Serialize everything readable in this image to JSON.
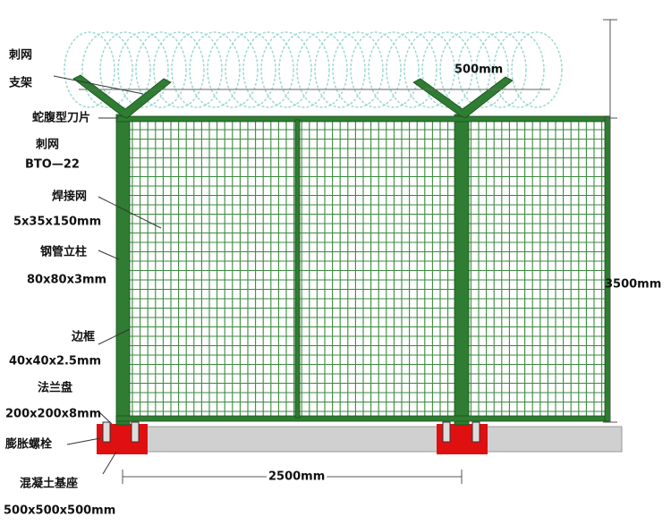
{
  "labels": {
    "barbed_wire": "刺网",
    "bracket": "支架",
    "razor_blade": "蛇腹型刀片",
    "barbed_wire_2": "刺网",
    "bto": "BTO—22",
    "welded_mesh": "焊接网",
    "mesh_spec": "5x35x150mm",
    "steel_post": "钢管立柱",
    "post_spec": "80x80x3mm",
    "frame": "边框",
    "frame_spec": "40x40x2.5mm",
    "flange": "法兰盘",
    "flange_spec": "200x200x8mm",
    "expansion_bolt": "膨胀螺栓",
    "concrete_base": "混凝土基座",
    "base_spec": "500x500x500mm"
  },
  "dimensions": {
    "wire_height": "500mm",
    "fence_height": "3500mm",
    "panel_width": "2500mm"
  }
}
